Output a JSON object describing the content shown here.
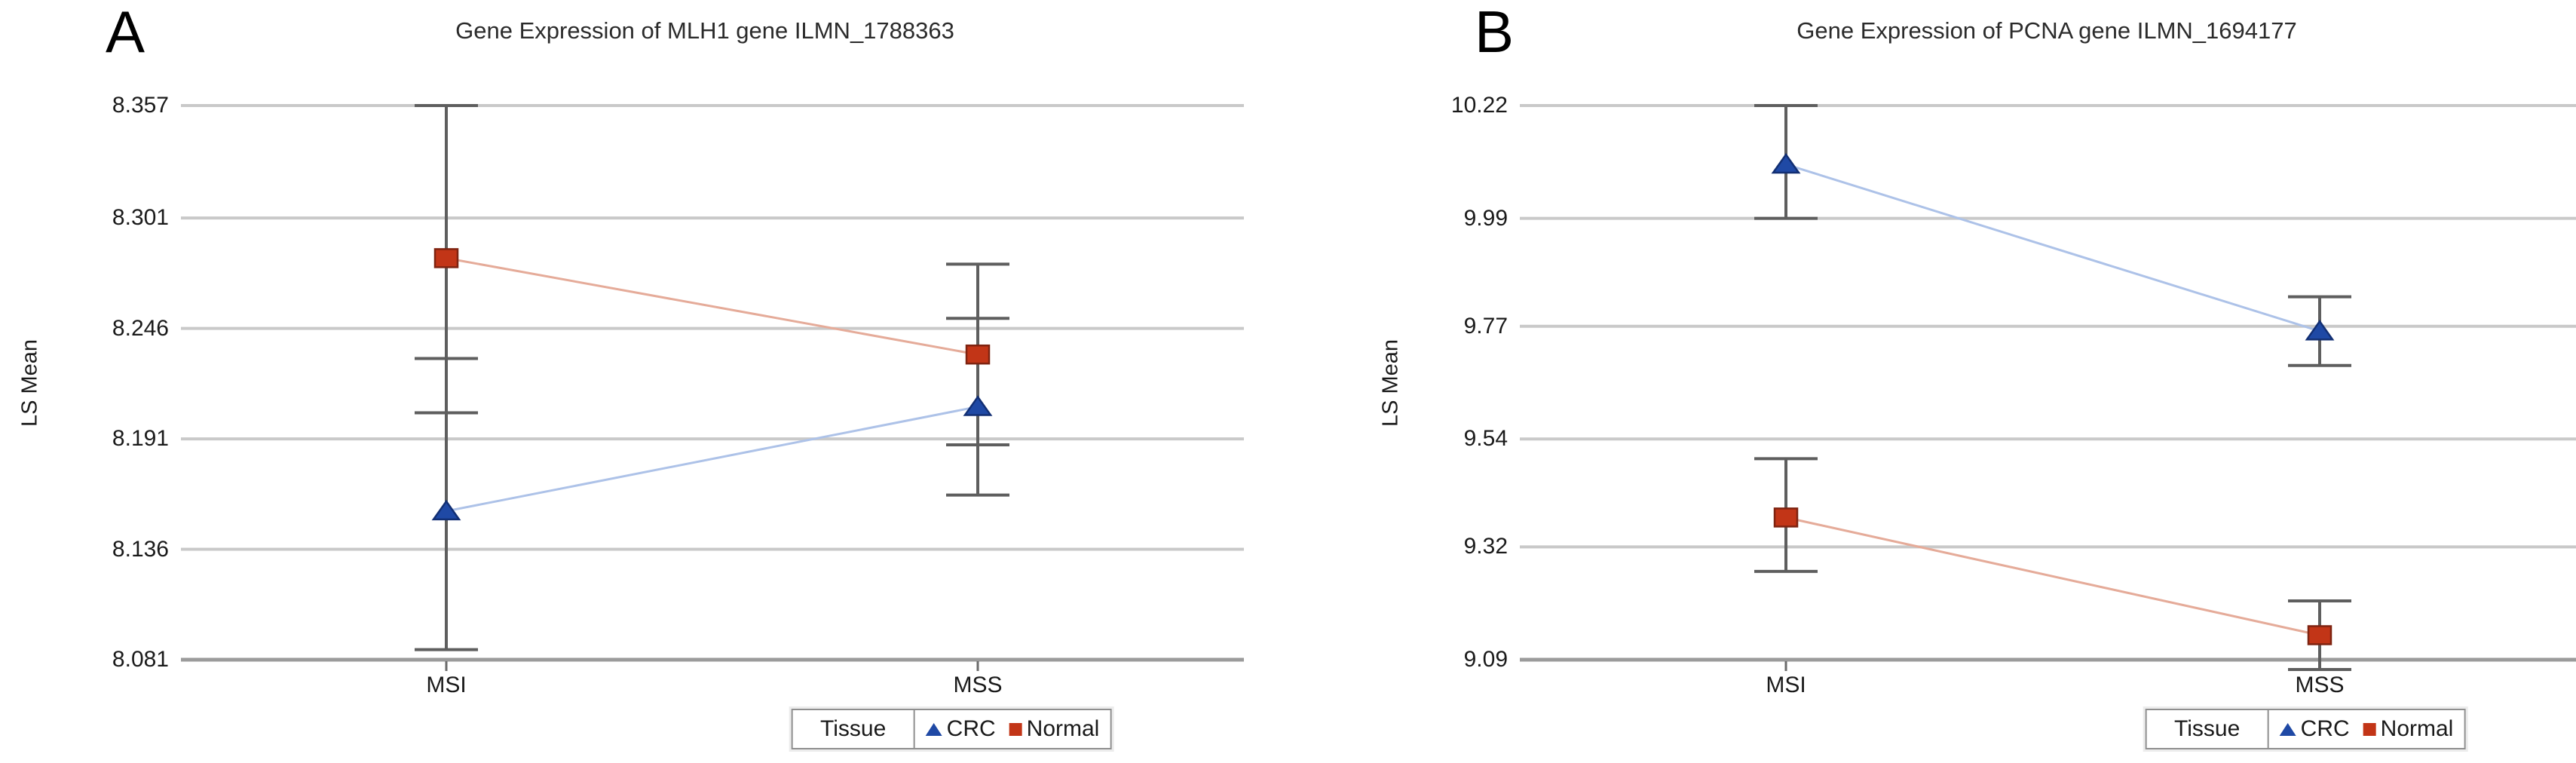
{
  "figure": {
    "background": "#ffffff"
  },
  "chart_data": [
    {
      "type": "line",
      "panel_label": "A",
      "title": "Gene Expression of MLH1 gene ILMN_1788363",
      "ylabel": "LS Mean",
      "xlabel": "",
      "categories": [
        "MSI",
        "MSS"
      ],
      "ytick_labels": [
        "8.357",
        "8.301",
        "8.246",
        "8.191",
        "8.136",
        "8.081"
      ],
      "ytick_values": [
        8.357,
        8.301,
        8.246,
        8.191,
        8.136,
        8.081
      ],
      "ylim": [
        8.081,
        8.357
      ],
      "grid": "horizontal",
      "colors": {
        "grid": "#c9c9c9",
        "axis": "#9b9b9b",
        "error_bar": "#5e5e5e",
        "tick": "#6b6b6b"
      },
      "series": [
        {
          "name": "CRC",
          "marker": "triangle",
          "color": "#1f49a5",
          "edge_color": "#122f73",
          "line_color": "#adc2e8",
          "values": [
            8.155,
            8.207
          ],
          "err_low": [
            8.086,
            8.163
          ],
          "err_high": [
            8.231,
            8.251
          ]
        },
        {
          "name": "Normal",
          "marker": "square",
          "color": "#c23517",
          "edge_color": "#7e2310",
          "line_color": "#e5ab99",
          "values": [
            8.281,
            8.233
          ],
          "err_low": [
            8.204,
            8.188
          ],
          "err_high": [
            8.357,
            8.278
          ]
        }
      ],
      "legend": {
        "title": "Tissue",
        "entries": [
          "CRC",
          "Normal"
        ],
        "position": "bottom"
      }
    },
    {
      "type": "line",
      "panel_label": "B",
      "title": "Gene Expression of PCNA gene ILMN_1694177",
      "ylabel": "LS Mean",
      "xlabel": "",
      "categories": [
        "MSI",
        "MSS"
      ],
      "ytick_labels": [
        "10.22",
        "9.99",
        "9.77",
        "9.54",
        "9.32",
        "9.09"
      ],
      "ytick_values": [
        10.22,
        9.99,
        9.77,
        9.54,
        9.32,
        9.09
      ],
      "ylim": [
        9.09,
        10.22
      ],
      "grid": "horizontal",
      "colors": {
        "grid": "#c9c9c9",
        "axis": "#9b9b9b",
        "error_bar": "#5e5e5e",
        "tick": "#6b6b6b"
      },
      "series": [
        {
          "name": "CRC",
          "marker": "triangle",
          "color": "#1f49a5",
          "edge_color": "#122f73",
          "line_color": "#adc2e8",
          "values": [
            10.1,
            9.76
          ],
          "err_low": [
            9.99,
            9.69
          ],
          "err_high": [
            10.22,
            9.83
          ]
        },
        {
          "name": "Normal",
          "marker": "square",
          "color": "#c23517",
          "edge_color": "#7e2310",
          "line_color": "#e5ab99",
          "values": [
            9.38,
            9.14
          ],
          "err_low": [
            9.27,
            9.07
          ],
          "err_high": [
            9.5,
            9.21
          ]
        }
      ],
      "legend": {
        "title": "Tissue",
        "entries": [
          "CRC",
          "Normal"
        ],
        "position": "bottom"
      }
    }
  ]
}
